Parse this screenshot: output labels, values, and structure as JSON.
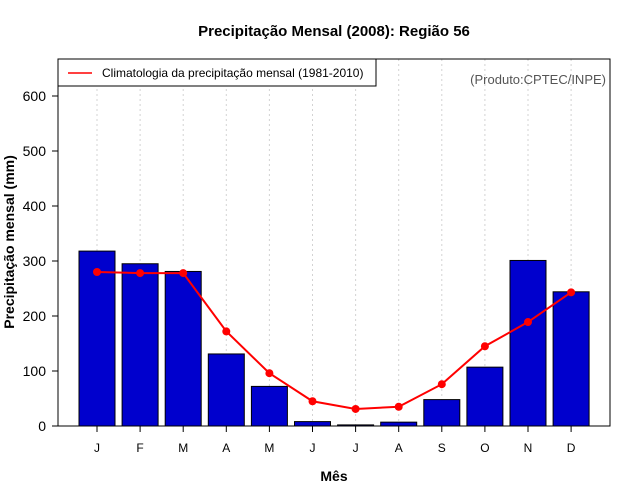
{
  "chart_data": {
    "type": "bar",
    "title": "Precipitação Mensal (2008): Região 56",
    "xlabel": "Mês",
    "ylabel": "Precipitação mensal (mm)",
    "ylim": [
      0,
      660
    ],
    "yticks": [
      0,
      100,
      200,
      300,
      400,
      500,
      600
    ],
    "categories": [
      "J",
      "F",
      "M",
      "A",
      "M",
      "J",
      "J",
      "A",
      "S",
      "O",
      "N",
      "D"
    ],
    "series": [
      {
        "name": "Precipitação mensal (2008)",
        "type": "bar",
        "color": "#0000CD",
        "values": [
          318,
          295,
          281,
          131,
          72,
          8,
          2,
          7,
          48,
          107,
          301,
          244
        ]
      },
      {
        "name": "Climatologia da precipitação mensal (1981-2010)",
        "type": "line",
        "color": "#FF0000",
        "values": [
          280,
          278,
          278,
          172,
          96,
          45,
          31,
          35,
          76,
          145,
          189,
          243
        ]
      }
    ],
    "legend": {
      "position": "top-left",
      "entries": [
        "Climatologia da precipitação mensal (1981-2010)"
      ]
    },
    "annotation": "(Produto:CPTEC/INPE)",
    "grid": "vertical dotted"
  }
}
